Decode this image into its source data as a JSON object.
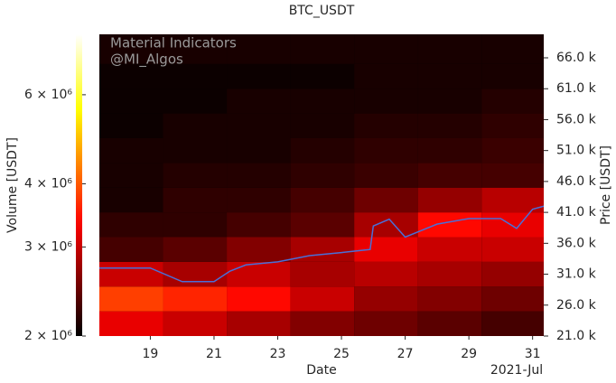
{
  "chart_data": {
    "type": "heatmap",
    "title": "BTC_USDT",
    "annotations": [
      "Material Indicators",
      "@MI_Algos"
    ],
    "xlabel": "Date",
    "x_offset_label": "2021-Jul",
    "ylabel": "Price [USDT]",
    "colorbar_label": "Volume [USDT]",
    "colormap": "hot",
    "colorbar_log": true,
    "xlim": [
      17.4,
      31.35
    ],
    "xticks": [
      19,
      21,
      23,
      25,
      27,
      29,
      31
    ],
    "ylim": [
      21000,
      69800
    ],
    "yticks": [
      {
        "value": 21000,
        "label": "21.0 k"
      },
      {
        "value": 26000,
        "label": "26.0 k"
      },
      {
        "value": 31000,
        "label": "31.0 k"
      },
      {
        "value": 36000,
        "label": "36.0 k"
      },
      {
        "value": 41000,
        "label": "41.0 k"
      },
      {
        "value": 46000,
        "label": "46.0 k"
      },
      {
        "value": 51000,
        "label": "51.0 k"
      },
      {
        "value": 56000,
        "label": "56.0 k"
      },
      {
        "value": 61000,
        "label": "61.0 k"
      },
      {
        "value": 66000,
        "label": "66.0 k"
      }
    ],
    "clim": [
      2000000,
      7900000
    ],
    "cticks": [
      {
        "value": 2000000,
        "label": "2 × 10⁶"
      },
      {
        "value": 3000000,
        "label": "3 × 10⁶"
      },
      {
        "value": 4000000,
        "label": "4 × 10⁶"
      },
      {
        "value": 6000000,
        "label": "6 × 10⁶"
      }
    ],
    "x_edges": [
      17.4,
      19.4,
      21.4,
      23.4,
      25.4,
      27.4,
      29.4,
      31.35
    ],
    "y_edges": [
      21000,
      25000,
      29000,
      33000,
      37000,
      41000,
      45000,
      49000,
      53000,
      57000,
      61000,
      65000,
      69800
    ],
    "z": [
      [
        3200000,
        3000000,
        2800000,
        2600000,
        2500000,
        2400000,
        2300000
      ],
      [
        3800000,
        3600000,
        3400000,
        3000000,
        2700000,
        2600000,
        2500000
      ],
      [
        3000000,
        2800000,
        3000000,
        2800000,
        2900000,
        2800000,
        2700000
      ],
      [
        2300000,
        2400000,
        2600000,
        2800000,
        3200000,
        3000000,
        3000000
      ],
      [
        2200000,
        2200000,
        2300000,
        2400000,
        2800000,
        3400000,
        3200000
      ],
      [
        2100000,
        2200000,
        2200000,
        2300000,
        2500000,
        2700000,
        2900000
      ],
      [
        2100000,
        2150000,
        2150000,
        2200000,
        2250000,
        2300000,
        2300000
      ],
      [
        2100000,
        2100000,
        2100000,
        2150000,
        2200000,
        2200000,
        2250000
      ],
      [
        2050000,
        2100000,
        2100000,
        2100000,
        2150000,
        2150000,
        2200000
      ],
      [
        2050000,
        2050000,
        2100000,
        2100000,
        2100000,
        2100000,
        2150000
      ],
      [
        2050000,
        2050000,
        2050000,
        2050000,
        2100000,
        2100000,
        2100000
      ],
      [
        2100000,
        2100000,
        2100000,
        2100000,
        2100000,
        2100000,
        2100000
      ]
    ],
    "price_line": {
      "color": "#4a6fd8",
      "x": [
        17.4,
        19,
        20,
        21,
        21.5,
        22,
        23,
        24,
        25,
        25.9,
        26,
        26.5,
        27,
        28,
        29,
        30,
        30.5,
        31,
        31.35
      ],
      "values": [
        32000,
        32000,
        29800,
        29800,
        31500,
        32500,
        33000,
        34000,
        34500,
        35000,
        38800,
        39900,
        37000,
        39100,
        40000,
        40000,
        38400,
        41500,
        42000
      ]
    }
  }
}
